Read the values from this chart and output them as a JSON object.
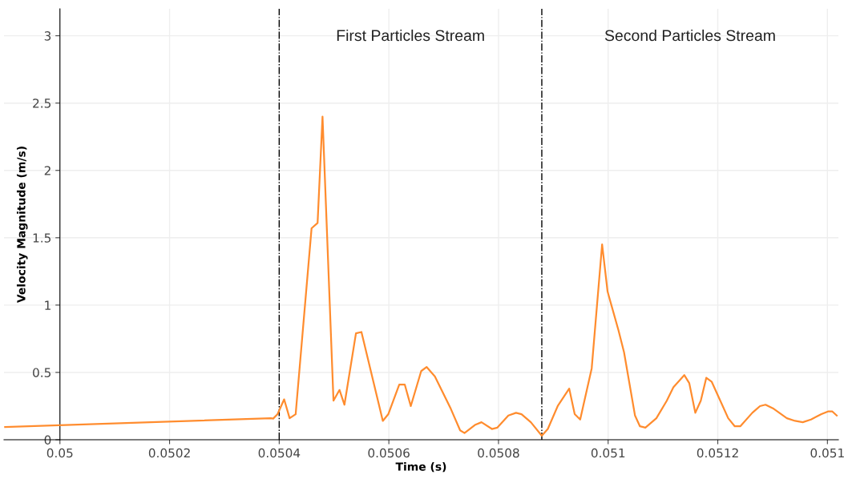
{
  "chart_data": {
    "type": "line",
    "xlabel": "Time (s)",
    "ylabel": "Velocity Magnitude (m/s)",
    "xlim": [
      0.049898,
      0.05142
    ],
    "ylim": [
      0,
      3.2
    ],
    "xticks": [
      0.05,
      0.0502,
      0.0504,
      0.0506,
      0.0508,
      0.051,
      0.0512,
      {
        "value": 0.0514,
        "label": "0.051"
      }
    ],
    "yticks": [
      0,
      0.5,
      1,
      1.5,
      2,
      2.5,
      3
    ],
    "grid": true,
    "marker": "none",
    "line_style": "solid",
    "ref_lines": [
      {
        "axis": "x",
        "value": 0.0504,
        "color": "#000000",
        "line_style": "dashed"
      },
      {
        "axis": "x",
        "value": 0.050879,
        "color": "#000000",
        "line_style": "dashed"
      }
    ],
    "annotations": [
      "First Particles Stream",
      "Second Particles Stream"
    ],
    "series": [
      {
        "color": "#ff8c2e",
        "x": [
          0.0499,
          0.050385,
          0.050389,
          0.050397,
          0.050409,
          0.050419,
          0.05043,
          0.050459,
          0.05047,
          0.050479,
          0.050499,
          0.05051,
          0.050519,
          0.05054,
          0.05055,
          0.050589,
          0.050599,
          0.050619,
          0.050629,
          0.05064,
          0.050659,
          0.050669,
          0.050684,
          0.050713,
          0.05073,
          0.050738,
          0.050757,
          0.050769,
          0.050788,
          0.050798,
          0.050818,
          0.050832,
          0.050842,
          0.050859,
          0.050879,
          0.05089,
          0.050908,
          0.050929,
          0.050939,
          0.050949,
          0.05097,
          0.050989,
          0.050999,
          0.051019,
          0.051029,
          0.051049,
          0.051058,
          0.051068,
          0.051088,
          0.051107,
          0.051119,
          0.051139,
          0.051148,
          0.051159,
          0.051169,
          0.051179,
          0.051189,
          0.051219,
          0.051231,
          0.051241,
          0.051263,
          0.051277,
          0.051287,
          0.051302,
          0.051326,
          0.051341,
          0.051355,
          0.05137,
          0.051389,
          0.051401,
          0.051409,
          0.051417
        ],
        "values": [
          0.095,
          0.16,
          0.157,
          0.19,
          0.3,
          0.16,
          0.19,
          1.57,
          1.61,
          2.4,
          0.29,
          0.37,
          0.26,
          0.79,
          0.8,
          0.14,
          0.19,
          0.41,
          0.41,
          0.25,
          0.51,
          0.54,
          0.47,
          0.23,
          0.07,
          0.05,
          0.11,
          0.13,
          0.08,
          0.09,
          0.18,
          0.2,
          0.19,
          0.13,
          0.03,
          0.08,
          0.25,
          0.38,
          0.19,
          0.15,
          0.53,
          1.45,
          1.1,
          0.81,
          0.65,
          0.18,
          0.1,
          0.09,
          0.16,
          0.29,
          0.39,
          0.48,
          0.42,
          0.2,
          0.29,
          0.46,
          0.43,
          0.16,
          0.1,
          0.1,
          0.2,
          0.25,
          0.26,
          0.23,
          0.16,
          0.14,
          0.13,
          0.15,
          0.19,
          0.21,
          0.21,
          0.18
        ]
      }
    ]
  }
}
